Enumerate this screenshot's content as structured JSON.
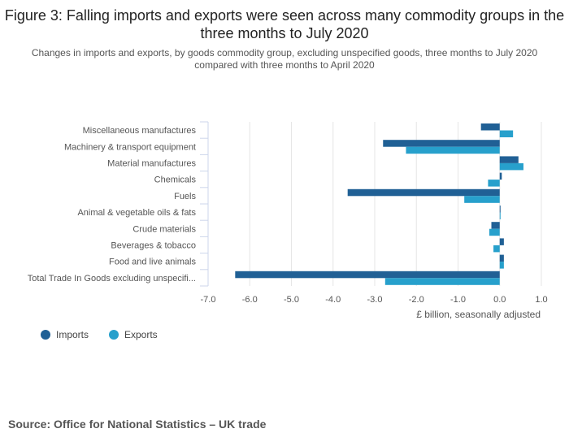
{
  "title": "Figure 3: Falling imports and exports were seen across many commodity groups in the three months to July 2020",
  "subtitle": "Changes in imports and exports, by goods commodity group, excluding unspecified goods, three months to July 2020 compared with three months to April 2020",
  "source": "Source: Office for National Statistics – UK trade",
  "colors": {
    "imports": "#206095",
    "exports": "#27a0cc",
    "grid": "#e6e6e6",
    "axis": "#ccd6eb"
  },
  "chart_data": {
    "type": "bar",
    "orientation": "horizontal",
    "categories": [
      "Miscellaneous manufactures",
      "Machinery & transport equipment",
      "Material manufactures",
      "Chemicals",
      "Fuels",
      "Animal & vegetable oils & fats",
      "Crude materials",
      "Beverages & tobacco",
      "Food and live animals",
      "Total Trade In Goods excluding unspecifi..."
    ],
    "series": [
      {
        "name": "Imports",
        "values": [
          -0.45,
          -2.8,
          0.45,
          0.05,
          -3.65,
          0.0,
          -0.2,
          0.1,
          0.1,
          -6.35
        ]
      },
      {
        "name": "Exports",
        "values": [
          0.32,
          -2.25,
          0.57,
          -0.28,
          -0.85,
          0.0,
          -0.25,
          -0.15,
          0.1,
          -2.75
        ]
      }
    ],
    "xlim": [
      -7.0,
      1.0
    ],
    "xticks": [
      "-7.0",
      "-6.0",
      "-5.0",
      "-4.0",
      "-3.0",
      "-2.0",
      "-1.0",
      "0.0",
      "1.0"
    ],
    "xlabel": "£ billion, seasonally adjusted",
    "grid": true,
    "legend": [
      "Imports",
      "Exports"
    ]
  }
}
